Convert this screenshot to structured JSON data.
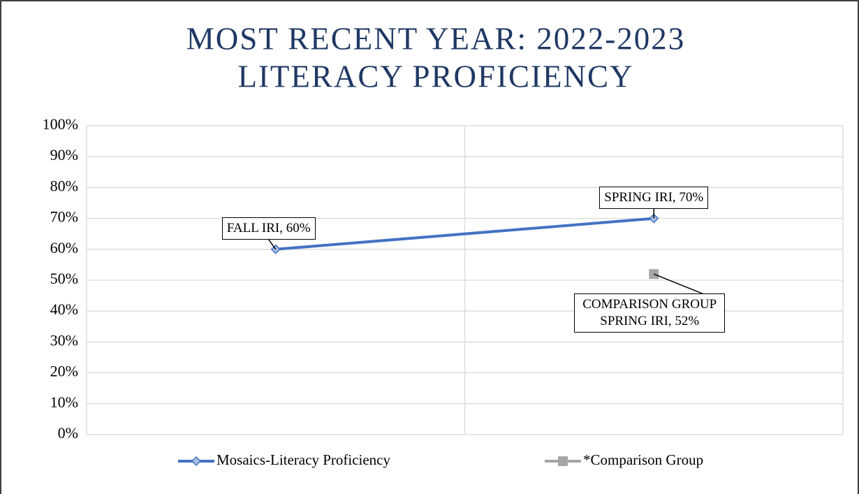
{
  "chart_data": {
    "type": "line",
    "title": [
      "MOST RECENT YEAR: 2022-2023",
      "LITERACY PROFICIENCY"
    ],
    "categories": [
      null,
      null
    ],
    "series": [
      {
        "name": "Mosaics-Literacy Proficiency",
        "color": "#4472c4",
        "values": [
          60,
          70
        ],
        "value_labels": [
          "FALL IRI, 60%",
          "SPRING IRI, 70%"
        ]
      },
      {
        "name": "*Comparison Group",
        "color": "#a5a5a5",
        "values": [
          null,
          52
        ],
        "value_labels": [
          null,
          "COMPARISON GROUP SPRING IRI, 52%"
        ]
      }
    ],
    "ylim": [
      0,
      100
    ],
    "yticks": [
      {
        "value": 0,
        "label": "0%"
      },
      {
        "value": 10,
        "label": "10%"
      },
      {
        "value": 20,
        "label": "20%"
      },
      {
        "value": 30,
        "label": "30%"
      },
      {
        "value": 40,
        "label": "40%"
      },
      {
        "value": 50,
        "label": "50%"
      },
      {
        "value": 60,
        "label": "60%"
      },
      {
        "value": 70,
        "label": "70%"
      },
      {
        "value": 80,
        "label": "80%"
      },
      {
        "value": 90,
        "label": "90%"
      },
      {
        "value": 100,
        "label": "100%"
      }
    ],
    "grid": true,
    "legend": "bottom"
  }
}
